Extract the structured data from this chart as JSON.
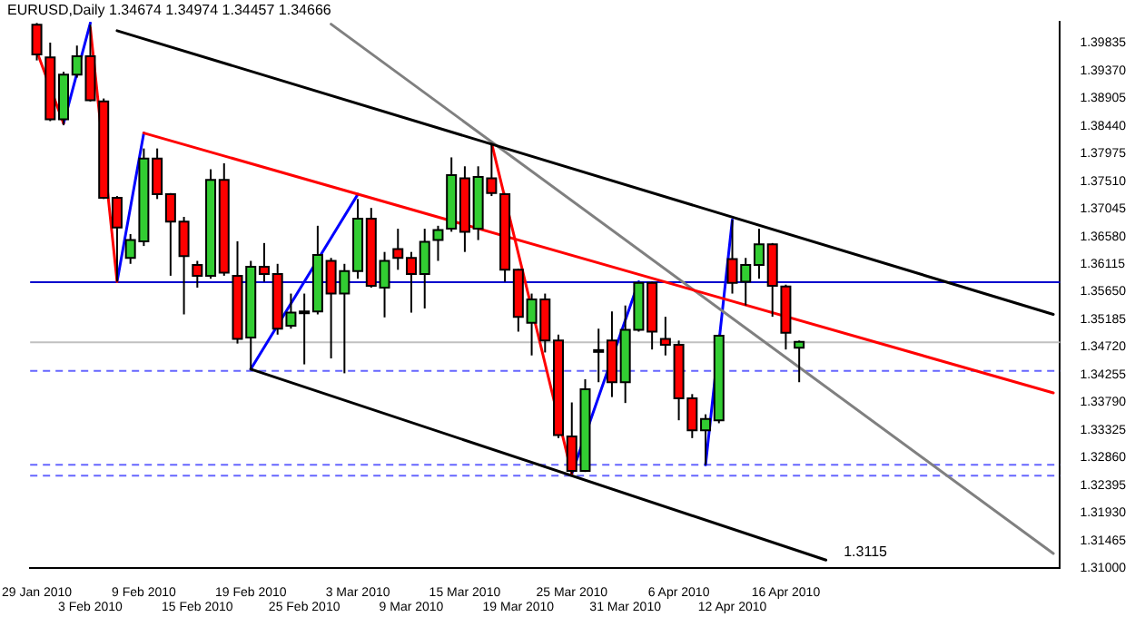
{
  "chart_data": {
    "type": "candlestick",
    "title": "EURUSD,Daily 1.34674 1.34974 1.34457 1.34666",
    "categories": [
      "29 Jan 2010",
      null,
      null,
      null,
      "3 Feb 2010",
      null,
      null,
      null,
      "9 Feb 2010",
      null,
      null,
      null,
      "15 Feb 2010",
      null,
      null,
      null,
      "19 Feb 2010",
      null,
      null,
      null,
      "25 Feb 2010",
      null,
      null,
      null,
      "3 Mar 2010",
      null,
      null,
      null,
      "9 Mar 2010",
      null,
      null,
      null,
      "15 Mar 2010",
      null,
      null,
      null,
      "19 Mar 2010",
      null,
      null,
      null,
      "25 Mar 2010",
      null,
      null,
      null,
      "31 Mar 2010",
      null,
      null,
      null,
      "6 Apr 2010",
      null,
      null,
      null,
      "12 Apr 2010",
      null,
      null,
      null,
      "16 Apr 2010",
      null,
      null,
      null,
      null,
      null,
      null,
      null,
      null,
      null,
      null,
      null,
      null,
      null,
      null,
      null,
      null,
      null,
      null,
      null,
      null
    ],
    "ohlc": [
      [
        1.4014,
        1.4017,
        1.3954,
        1.3964
      ],
      [
        1.3959,
        1.3984,
        1.3852,
        1.3855
      ],
      [
        1.3855,
        1.3935,
        1.3845,
        1.393
      ],
      [
        1.393,
        1.3979,
        1.3925,
        1.3961
      ],
      [
        1.3961,
        1.4014,
        1.3885,
        1.3887
      ],
      [
        1.3885,
        1.389,
        1.3721,
        1.3723
      ],
      [
        1.3723,
        1.3726,
        1.3582,
        1.3673
      ],
      [
        1.3622,
        1.3662,
        1.3612,
        1.3652
      ],
      [
        1.365,
        1.3806,
        1.3642,
        1.3789
      ],
      [
        1.3789,
        1.3806,
        1.3721,
        1.3729
      ],
      [
        1.3729,
        1.3731,
        1.3592,
        1.3683
      ],
      [
        1.3683,
        1.3691,
        1.3527,
        1.3625
      ],
      [
        1.361,
        1.3617,
        1.3572,
        1.3592
      ],
      [
        1.3592,
        1.3771,
        1.3587,
        1.3753
      ],
      [
        1.3753,
        1.3781,
        1.3592,
        1.3597
      ],
      [
        1.3592,
        1.365,
        1.3478,
        1.3486
      ],
      [
        1.3488,
        1.3617,
        1.3433,
        1.3607
      ],
      [
        1.3607,
        1.3647,
        1.3582,
        1.3595
      ],
      [
        1.3595,
        1.3612,
        1.3493,
        1.3503
      ],
      [
        1.3508,
        1.3562,
        1.3503,
        1.353
      ],
      [
        1.3532,
        1.3562,
        1.3443,
        1.3532
      ],
      [
        1.3532,
        1.3676,
        1.3527,
        1.3627
      ],
      [
        1.3617,
        1.3622,
        1.3453,
        1.3562
      ],
      [
        1.3562,
        1.3612,
        1.3428,
        1.36
      ],
      [
        1.36,
        1.3721,
        1.3587,
        1.3688
      ],
      [
        1.3688,
        1.3706,
        1.3572,
        1.3575
      ],
      [
        1.3572,
        1.3632,
        1.3522,
        1.3617
      ],
      [
        1.3637,
        1.3671,
        1.3602,
        1.3622
      ],
      [
        1.3622,
        1.3632,
        1.353,
        1.3595
      ],
      [
        1.3595,
        1.3671,
        1.3537,
        1.3649
      ],
      [
        1.3652,
        1.3676,
        1.3617,
        1.3669
      ],
      [
        1.3671,
        1.3791,
        1.3666,
        1.3761
      ],
      [
        1.3756,
        1.3776,
        1.3632,
        1.3666
      ],
      [
        1.3671,
        1.3776,
        1.3652,
        1.3758
      ],
      [
        1.3756,
        1.3815,
        1.3726,
        1.3731
      ],
      [
        1.3729,
        1.3731,
        1.3582,
        1.3602
      ],
      [
        1.3602,
        1.3604,
        1.3498,
        1.3523
      ],
      [
        1.3513,
        1.3562,
        1.3458,
        1.3552
      ],
      [
        1.3552,
        1.3562,
        1.3463,
        1.3483
      ],
      [
        1.3483,
        1.3493,
        1.3319,
        1.3324
      ],
      [
        1.3322,
        1.3379,
        1.3259,
        1.3264
      ],
      [
        1.3264,
        1.3418,
        1.3262,
        1.3401
      ],
      [
        1.3467,
        1.3503,
        1.3413,
        1.3467
      ],
      [
        1.3483,
        1.3532,
        1.3388,
        1.3413
      ],
      [
        1.3413,
        1.3542,
        1.3378,
        1.3501
      ],
      [
        1.3501,
        1.3582,
        1.3498,
        1.358
      ],
      [
        1.358,
        1.3582,
        1.3468,
        1.3498
      ],
      [
        1.3486,
        1.3523,
        1.3458,
        1.3476
      ],
      [
        1.3476,
        1.3483,
        1.3349,
        1.3386
      ],
      [
        1.3386,
        1.3393,
        1.3319,
        1.3332
      ],
      [
        1.3332,
        1.3359,
        1.3274,
        1.3351
      ],
      [
        1.3349,
        1.3493,
        1.3344,
        1.3491
      ],
      [
        1.362,
        1.3686,
        1.3562,
        1.358
      ],
      [
        1.3582,
        1.3622,
        1.3542,
        1.361
      ],
      [
        1.361,
        1.3671,
        1.3587,
        1.3645
      ],
      [
        1.3645,
        1.3647,
        1.3523,
        1.3575
      ],
      [
        1.3574,
        1.3577,
        1.3468,
        1.3496
      ],
      [
        1.3471,
        1.3483,
        1.3413,
        1.3481
      ],
      null,
      null,
      null,
      null,
      null,
      null,
      null,
      null,
      null,
      null,
      null,
      null,
      null,
      null,
      null,
      null,
      null,
      null,
      null
    ],
    "colors": [
      "#ff0000",
      "#ff0000",
      "#32cd32",
      "#32cd32",
      "#ff0000",
      "#ff0000",
      "#ff0000",
      "#32cd32",
      "#32cd32",
      "#ff0000",
      "#ff0000",
      "#ff0000",
      "#ff0000",
      "#32cd32",
      "#ff0000",
      "#ff0000",
      "#32cd32",
      "#ff0000",
      "#ff0000",
      "#32cd32",
      "#000000",
      "#32cd32",
      "#ff0000",
      "#32cd32",
      "#32cd32",
      "#ff0000",
      "#32cd32",
      "#ff0000",
      "#ff0000",
      "#32cd32",
      "#32cd32",
      "#32cd32",
      "#ff0000",
      "#32cd32",
      "#ff0000",
      "#ff0000",
      "#ff0000",
      "#32cd32",
      "#ff0000",
      "#ff0000",
      "#ff0000",
      "#32cd32",
      "#000000",
      "#ff0000",
      "#32cd32",
      "#32cd32",
      "#ff0000",
      "#ff0000",
      "#ff0000",
      "#ff0000",
      "#32cd32",
      "#32cd32",
      "#ff0000",
      "#32cd32",
      "#32cd32",
      "#ff0000",
      "#ff0000",
      "#32cd32",
      null,
      null,
      null,
      null,
      null,
      null,
      null,
      null,
      null,
      null,
      null,
      null,
      null,
      null,
      null,
      null,
      null,
      null,
      null
    ],
    "series": [
      {
        "type": "line",
        "color": "#000000",
        "values": [
          null,
          null,
          null,
          null,
          null,
          null,
          1.4004,
          null,
          null,
          null,
          null,
          null,
          null,
          null,
          null,
          null,
          null,
          null,
          null,
          null,
          null,
          null,
          null,
          null,
          null,
          null,
          null,
          null,
          null,
          null,
          null,
          null,
          null,
          null,
          null,
          null,
          null,
          null,
          null,
          null,
          null,
          null,
          null,
          null,
          null,
          null,
          null,
          null,
          null,
          null,
          null,
          null,
          null,
          null,
          null,
          null,
          null,
          null,
          null,
          null,
          null,
          null,
          null,
          null,
          null,
          null,
          null,
          null,
          null,
          null,
          null,
          null,
          null,
          null,
          null,
          null,
          1.3527
        ]
      },
      {
        "type": "line",
        "color": "#000000",
        "values": [
          null,
          null,
          null,
          null,
          null,
          null,
          null,
          null,
          null,
          null,
          null,
          null,
          null,
          null,
          null,
          null,
          1.3435,
          null,
          null,
          null,
          null,
          null,
          null,
          null,
          null,
          null,
          null,
          null,
          null,
          null,
          null,
          null,
          null,
          null,
          null,
          null,
          null,
          null,
          null,
          null,
          null,
          null,
          null,
          null,
          null,
          null,
          null,
          null,
          null,
          null,
          null,
          null,
          null,
          null,
          null,
          null,
          null,
          null,
          null,
          1.3114,
          null,
          null,
          null,
          null,
          null,
          null,
          null,
          null,
          null,
          null,
          null,
          null,
          null,
          null,
          null,
          null,
          null
        ]
      },
      {
        "type": "line",
        "color": "#ff0000",
        "values": [
          null,
          null,
          null,
          null,
          null,
          null,
          null,
          null,
          1.3832,
          null,
          null,
          null,
          null,
          null,
          null,
          null,
          null,
          null,
          null,
          null,
          null,
          null,
          null,
          null,
          null,
          null,
          null,
          null,
          null,
          null,
          null,
          null,
          null,
          null,
          null,
          null,
          null,
          null,
          null,
          null,
          null,
          null,
          null,
          null,
          null,
          null,
          null,
          null,
          null,
          null,
          null,
          null,
          null,
          null,
          null,
          null,
          null,
          null,
          null,
          null,
          null,
          null,
          null,
          null,
          null,
          null,
          null,
          null,
          null,
          null,
          null,
          null,
          null,
          null,
          null,
          null,
          1.3395
        ]
      },
      {
        "type": "line",
        "color": "#808080",
        "values": [
          null,
          null,
          null,
          null,
          null,
          null,
          null,
          null,
          null,
          null,
          null,
          null,
          null,
          null,
          null,
          null,
          null,
          null,
          null,
          null,
          null,
          null,
          1.4015,
          null,
          null,
          null,
          null,
          null,
          null,
          null,
          null,
          null,
          null,
          null,
          null,
          null,
          null,
          null,
          null,
          null,
          null,
          null,
          null,
          null,
          null,
          null,
          null,
          null,
          null,
          null,
          null,
          null,
          null,
          null,
          null,
          null,
          null,
          null,
          null,
          null,
          null,
          null,
          null,
          null,
          null,
          null,
          null,
          null,
          null,
          null,
          null,
          null,
          null,
          null,
          null,
          null,
          1.3125
        ]
      },
      {
        "type": "line",
        "color": "#ff0000",
        "values": [
          1.3969,
          null,
          1.3848,
          null,
          null,
          null,
          null,
          null,
          null,
          null,
          null,
          null,
          null,
          null,
          null,
          null,
          null,
          null,
          null,
          null,
          null,
          null,
          null,
          null,
          null,
          null,
          null,
          null,
          null,
          null,
          null,
          null,
          null,
          null,
          null,
          null,
          null,
          null,
          null,
          null,
          null,
          null,
          null,
          null,
          null,
          null,
          null,
          null,
          null,
          null,
          null,
          null,
          null,
          null,
          null,
          null,
          null,
          null,
          null,
          null,
          null,
          null,
          null,
          null,
          null,
          null,
          null,
          null,
          null,
          null,
          null,
          null,
          null,
          null,
          null,
          null,
          null
        ]
      },
      {
        "type": "line",
        "color": "#0000ff",
        "values": [
          null,
          null,
          1.3848,
          null,
          1.4017,
          null,
          null,
          null,
          null,
          null,
          null,
          null,
          null,
          null,
          null,
          null,
          null,
          null,
          null,
          null,
          null,
          null,
          null,
          null,
          null,
          null,
          null,
          null,
          null,
          null,
          null,
          null,
          null,
          null,
          null,
          null,
          null,
          null,
          null,
          null,
          null,
          null,
          null,
          null,
          null,
          null,
          null,
          null,
          null,
          null,
          null,
          null,
          null,
          null,
          null,
          null,
          null,
          null,
          null,
          null,
          null,
          null,
          null,
          null,
          null,
          null,
          null,
          null,
          null,
          null,
          null,
          null,
          null,
          null,
          null,
          null,
          null
        ]
      },
      {
        "type": "line",
        "color": "#ff0000",
        "values": [
          null,
          null,
          null,
          null,
          1.4009,
          null,
          1.3582,
          null,
          null,
          null,
          null,
          null,
          null,
          null,
          null,
          null,
          null,
          null,
          null,
          null,
          null,
          null,
          null,
          null,
          null,
          null,
          null,
          null,
          null,
          null,
          null,
          null,
          null,
          null,
          null,
          null,
          null,
          null,
          null,
          null,
          null,
          null,
          null,
          null,
          null,
          null,
          null,
          null,
          null,
          null,
          null,
          null,
          null,
          null,
          null,
          null,
          null,
          null,
          null,
          null,
          null,
          null,
          null,
          null,
          null,
          null,
          null,
          null,
          null,
          null,
          null,
          null,
          null,
          null,
          null,
          null,
          null
        ]
      },
      {
        "type": "line",
        "color": "#0000ff",
        "values": [
          null,
          null,
          null,
          null,
          null,
          null,
          1.3582,
          null,
          1.3832,
          null,
          null,
          null,
          null,
          null,
          null,
          null,
          null,
          null,
          null,
          null,
          null,
          null,
          null,
          null,
          null,
          null,
          null,
          null,
          null,
          null,
          null,
          null,
          null,
          null,
          null,
          null,
          null,
          null,
          null,
          null,
          null,
          null,
          null,
          null,
          null,
          null,
          null,
          null,
          null,
          null,
          null,
          null,
          null,
          null,
          null,
          null,
          null,
          null,
          null,
          null,
          null,
          null,
          null,
          null,
          null,
          null,
          null,
          null,
          null,
          null,
          null,
          null,
          null,
          null,
          null,
          null,
          null
        ]
      },
      {
        "type": "line",
        "color": "#0000ff",
        "values": [
          null,
          null,
          null,
          null,
          null,
          null,
          null,
          null,
          null,
          null,
          null,
          null,
          null,
          null,
          null,
          null,
          1.3435,
          null,
          null,
          null,
          null,
          null,
          null,
          null,
          1.3729,
          null,
          null,
          null,
          null,
          null,
          null,
          null,
          null,
          null,
          null,
          null,
          null,
          null,
          null,
          null,
          null,
          null,
          null,
          null,
          null,
          null,
          null,
          null,
          null,
          null,
          null,
          null,
          null,
          null,
          null,
          null,
          null,
          null,
          null,
          null,
          null,
          null,
          null,
          null,
          null,
          null,
          null,
          null,
          null,
          null,
          null,
          null,
          null,
          null,
          null,
          null,
          null
        ]
      },
      {
        "type": "line",
        "color": "#ff0000",
        "values": [
          null,
          null,
          null,
          null,
          null,
          null,
          null,
          null,
          null,
          null,
          null,
          null,
          null,
          null,
          null,
          null,
          null,
          null,
          null,
          null,
          null,
          null,
          null,
          null,
          null,
          null,
          null,
          null,
          null,
          null,
          null,
          null,
          null,
          null,
          1.3815,
          null,
          null,
          null,
          null,
          null,
          1.3259,
          null,
          null,
          null,
          null,
          null,
          null,
          null,
          null,
          null,
          null,
          null,
          null,
          null,
          null,
          null,
          null,
          null,
          null,
          null,
          null,
          null,
          null,
          null,
          null,
          null,
          null,
          null,
          null,
          null,
          null,
          null,
          null,
          null,
          null,
          null,
          null
        ]
      },
      {
        "type": "line",
        "color": "#0000ff",
        "values": [
          null,
          null,
          null,
          null,
          null,
          null,
          null,
          null,
          null,
          null,
          null,
          null,
          null,
          null,
          null,
          null,
          null,
          null,
          null,
          null,
          null,
          null,
          null,
          null,
          null,
          null,
          null,
          null,
          null,
          null,
          null,
          null,
          null,
          null,
          null,
          null,
          null,
          null,
          null,
          null,
          1.3259,
          null,
          null,
          null,
          null,
          1.3582,
          null,
          null,
          null,
          null,
          null,
          null,
          null,
          null,
          null,
          null,
          null,
          null,
          null,
          null,
          null,
          null,
          null,
          null,
          null,
          null,
          null,
          null,
          null,
          null,
          null,
          null,
          null,
          null,
          null,
          null,
          null
        ]
      },
      {
        "type": "line",
        "color": "#0000ff",
        "values": [
          null,
          null,
          null,
          null,
          null,
          null,
          null,
          null,
          null,
          null,
          null,
          null,
          null,
          null,
          null,
          null,
          null,
          null,
          null,
          null,
          null,
          null,
          null,
          null,
          null,
          null,
          null,
          null,
          null,
          null,
          null,
          null,
          null,
          null,
          null,
          null,
          null,
          null,
          null,
          null,
          null,
          null,
          null,
          null,
          null,
          null,
          null,
          null,
          null,
          null,
          1.3274,
          null,
          1.3686,
          null,
          null,
          null,
          null,
          null,
          null,
          null,
          null,
          null,
          null,
          null,
          null,
          null,
          null,
          null,
          null,
          null,
          null,
          null,
          null,
          null,
          null,
          null,
          null
        ]
      }
    ],
    "ylim": [
      1.31,
      1.4019
    ],
    "yticks": [
      1.39835,
      {
        "value": 1.3937,
        "label": "1.39370"
      },
      1.38905,
      {
        "value": 1.3844,
        "label": "1.38440"
      },
      1.37975,
      {
        "value": 1.3751,
        "label": "1.37510"
      },
      1.37045,
      {
        "value": 1.3658,
        "label": "1.36580"
      },
      1.36115,
      {
        "value": 1.3565,
        "label": "1.35650"
      },
      1.35185,
      {
        "value": 1.3472,
        "label": "1.34720"
      },
      1.34255,
      {
        "value": 1.3379,
        "label": "1.33790"
      },
      1.33325,
      {
        "value": 1.3286,
        "label": "1.32860"
      },
      1.32395,
      {
        "value": 1.3193,
        "label": "1.31930"
      },
      1.31465,
      {
        "value": 1.31,
        "label": "1.31000"
      }
    ],
    "ref_lines": [
      {
        "axis": "y",
        "value": 1.3581,
        "color": "#0000cc",
        "line_style": "solid"
      },
      {
        "axis": "y",
        "value": 1.348,
        "color": "#c0c0c0",
        "line_style": "solid"
      },
      {
        "axis": "y",
        "value": 1.3432,
        "color": "#6666ff",
        "line_style": "dashed"
      },
      {
        "axis": "y",
        "value": 1.3274,
        "color": "#6666ff",
        "line_style": "dashed"
      },
      {
        "axis": "y",
        "value": 1.3256,
        "color": "#6666ff",
        "line_style": "dashed"
      }
    ],
    "annotations": [
      "1.3115"
    ],
    "marker": "none",
    "grid": false,
    "legend": false
  }
}
